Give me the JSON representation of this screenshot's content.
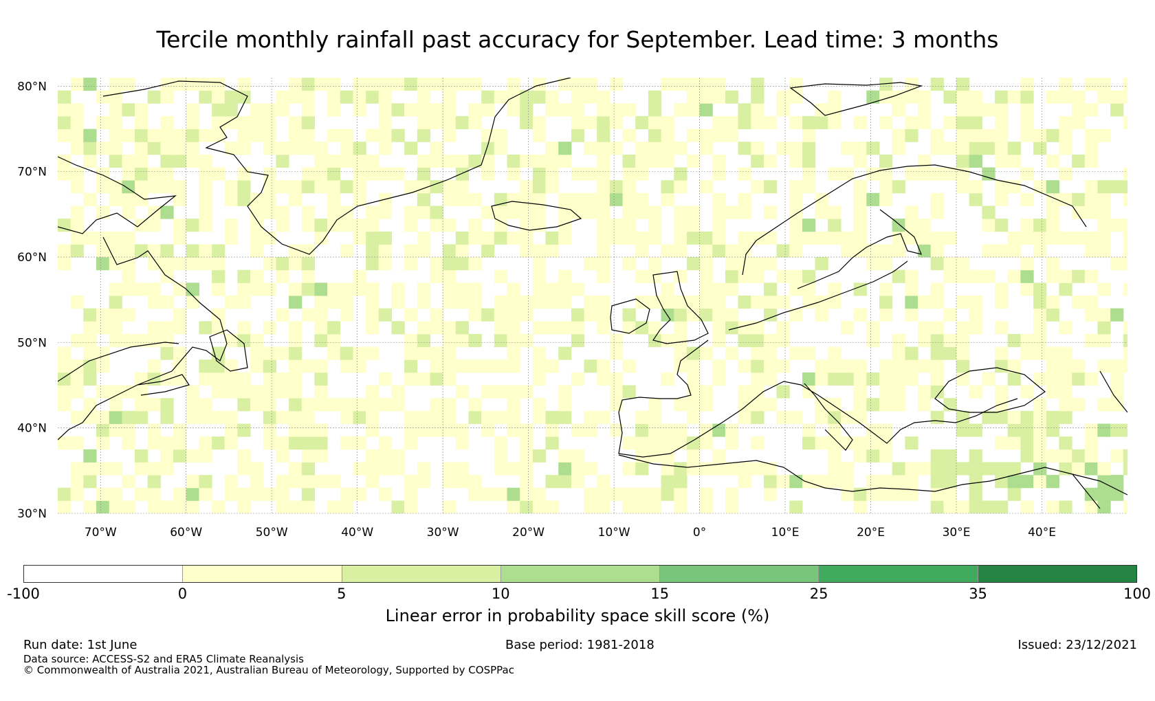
{
  "title": "Tercile monthly rainfall past accuracy for September. Lead time: 3 months",
  "map": {
    "lat_ticks": [
      "80°N",
      "70°N",
      "60°N",
      "50°N",
      "40°N",
      "30°N"
    ],
    "lon_ticks": [
      "70°W",
      "60°W",
      "50°W",
      "40°W",
      "30°W",
      "20°W",
      "10°W",
      "0°",
      "10°E",
      "20°E",
      "30°E",
      "40°E"
    ],
    "lat_range": [
      30,
      81
    ],
    "lon_range": [
      -75,
      50
    ],
    "grid": true,
    "description_colors": {
      "land_outline": "#000000",
      "gridline": "#888888"
    }
  },
  "colorbar": {
    "title": "Linear error in probability space skill score (%)",
    "bounds": [
      "-100",
      "0",
      "5",
      "10",
      "15",
      "25",
      "35",
      "100"
    ],
    "colors": [
      "#ffffff",
      "#ffffcc",
      "#d9f0a3",
      "#addd8e",
      "#78c679",
      "#41ab5d",
      "#238443"
    ]
  },
  "footer": {
    "run_date": "Run date: 1st June",
    "base_period": "Base period: 1981-2018",
    "issued": "Issued: 23/12/2021",
    "data_source": "Data source: ACCESS-S2 and ERA5 Climate Reanalysis",
    "copyright": "© Commonwealth of Australia 2021, Australian Bureau of Meteorology, Supported by COSPPac"
  }
}
